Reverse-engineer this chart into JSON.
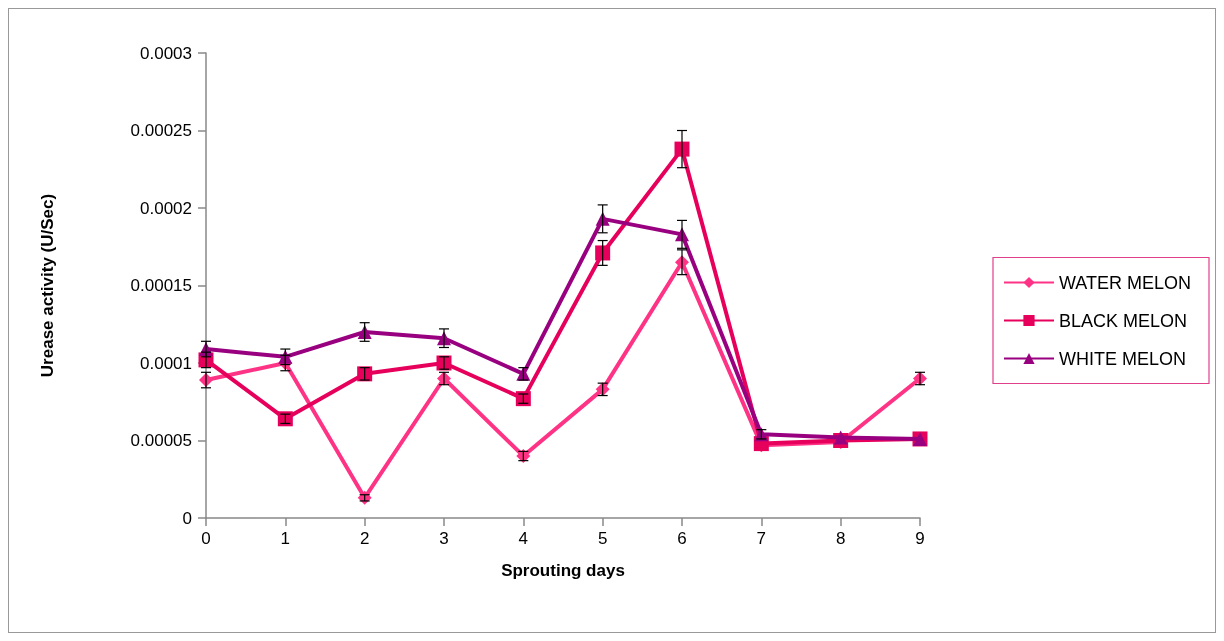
{
  "chart_data": {
    "type": "line",
    "xlabel": "Sprouting days",
    "ylabel": "Urease activity (U/Sec)",
    "x": [
      0,
      1,
      2,
      3,
      4,
      5,
      6,
      7,
      8,
      9
    ],
    "xlim": [
      0,
      9
    ],
    "xticks": [
      0,
      1,
      2,
      3,
      4,
      5,
      6,
      7,
      8,
      9
    ],
    "ylim": [
      0,
      0.0003
    ],
    "yticks": [
      0,
      {
        "value": 5e-05,
        "label": "0.00005"
      },
      {
        "value": 0.0001,
        "label": "0.0001"
      },
      {
        "value": 0.00015,
        "label": "0.00015"
      },
      {
        "value": 0.0002,
        "label": "0.0002"
      },
      {
        "value": 0.00025,
        "label": "0.00025"
      },
      {
        "value": 0.0003,
        "label": "0.0003"
      }
    ],
    "grid": false,
    "legend": "right",
    "line_style": "solid",
    "series": [
      {
        "name": "WATER MELON",
        "color": "#ff3385",
        "marker": "diamond",
        "values": [
          8.9e-05,
          0.0001,
          1.3e-05,
          9e-05,
          4e-05,
          8.3e-05,
          0.000165,
          4.7e-05,
          4.9e-05,
          9e-05
        ],
        "errors": [
          5e-06,
          5e-06,
          2e-06,
          4e-06,
          3e-06,
          4e-06,
          8e-06,
          null,
          null,
          4e-06
        ]
      },
      {
        "name": "BLACK MELON",
        "color": "#e6005c",
        "marker": "square",
        "values": [
          0.000102,
          6.4e-05,
          9.3e-05,
          0.0001,
          7.7e-05,
          0.000171,
          0.000238,
          4.8e-05,
          5e-05,
          5.1e-05
        ],
        "errors": [
          5e-06,
          3e-06,
          4e-06,
          4e-06,
          3e-06,
          8e-06,
          1.2e-05,
          null,
          null,
          null
        ]
      },
      {
        "name": "WHITE MELON",
        "color": "#990080",
        "marker": "triangle",
        "values": [
          0.000109,
          0.000104,
          0.00012,
          0.000116,
          9.3e-05,
          0.000193,
          0.000183,
          5.4e-05,
          5.2e-05,
          5.1e-05
        ],
        "errors": [
          5e-06,
          5e-06,
          6e-06,
          6e-06,
          4e-06,
          9e-06,
          9e-06,
          3e-06,
          null,
          null
        ]
      }
    ]
  }
}
